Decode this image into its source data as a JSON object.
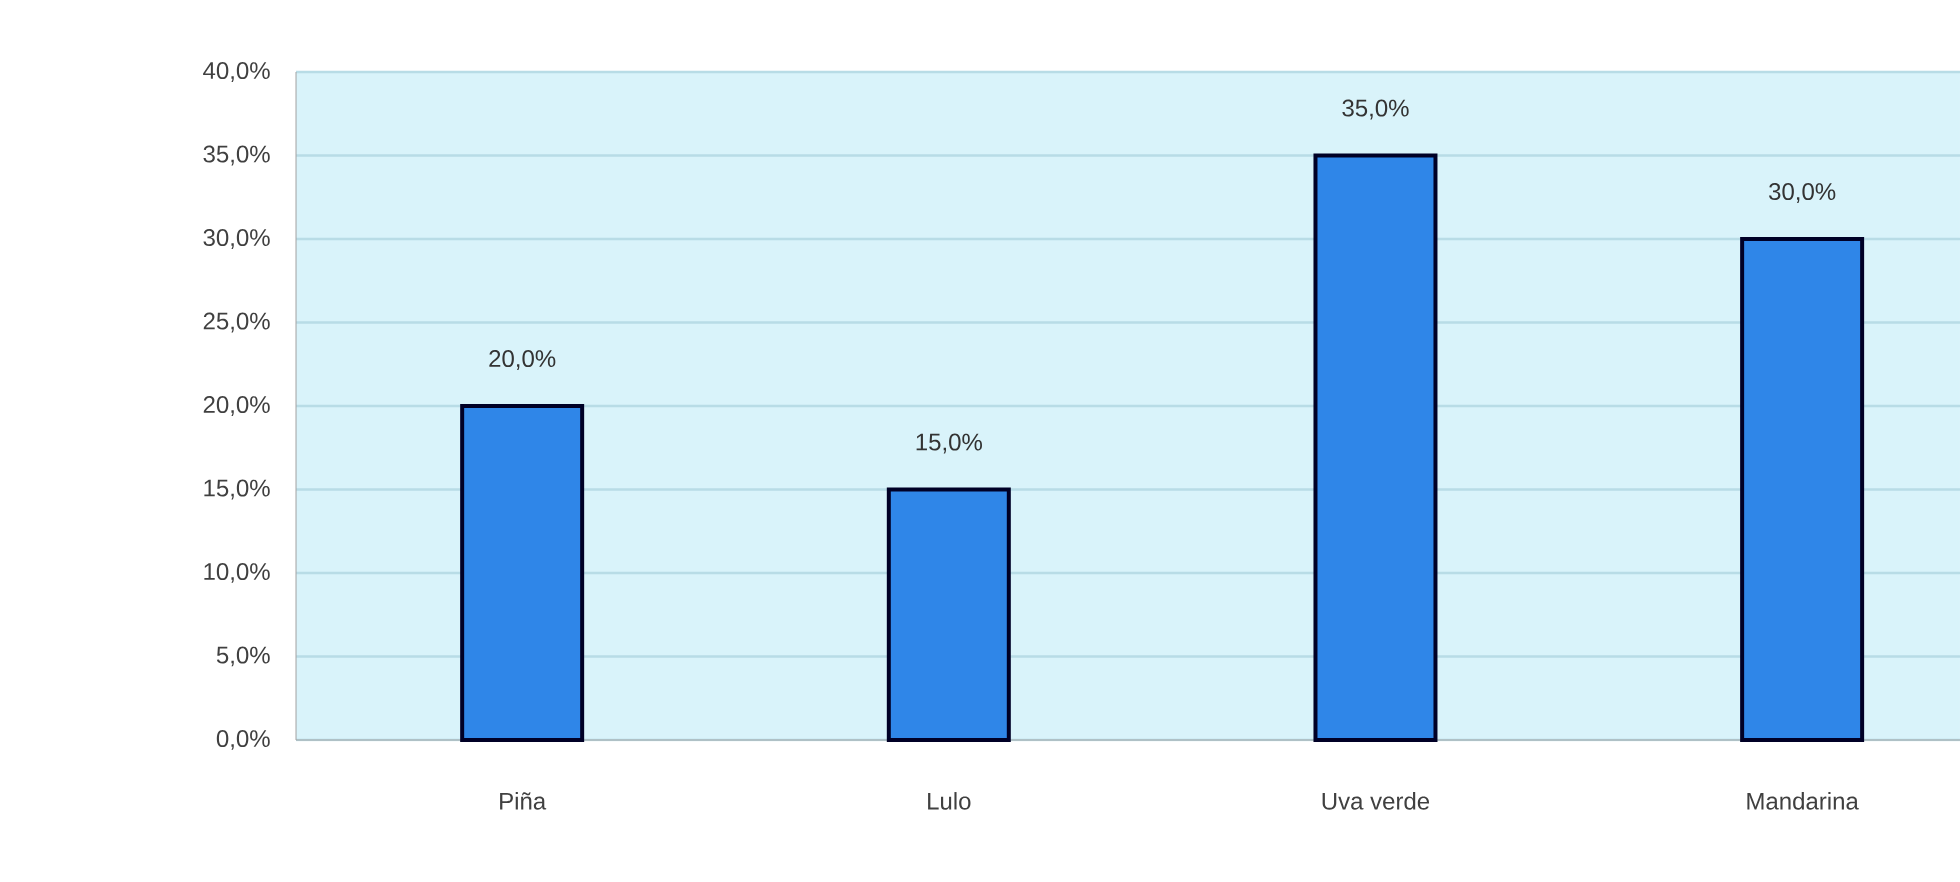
{
  "chart_data": {
    "type": "bar",
    "categories": [
      "Piña",
      "Lulo",
      "Uva verde",
      "Mandarina"
    ],
    "values": [
      20,
      15,
      35,
      30
    ],
    "value_labels": [
      "20,0%",
      "15,0%",
      "35,0%",
      "30,0%"
    ],
    "color": "#2f86e8",
    "ylim": [
      0,
      40
    ],
    "yticks": [
      {
        "value": 0,
        "label": "0,0%"
      },
      {
        "value": 5,
        "label": "5,0%"
      },
      {
        "value": 10,
        "label": "10,0%"
      },
      {
        "value": 15,
        "label": "15,0%"
      },
      {
        "value": 20,
        "label": "20,0%"
      },
      {
        "value": 25,
        "label": "25,0%"
      },
      {
        "value": 30,
        "label": "30,0%"
      },
      {
        "value": 35,
        "label": "35,0%"
      },
      {
        "value": 40,
        "label": "40,0%"
      }
    ],
    "grid": "y"
  }
}
